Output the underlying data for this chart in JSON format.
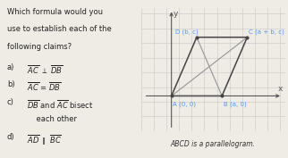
{
  "text_lines": [
    "Which formula would you",
    "use to establish each of the",
    "following claims?"
  ],
  "items": [
    [
      "a)",
      "$\\overline{AC}$ $\\perp$ $\\overline{DB}$"
    ],
    [
      "b)",
      "$\\overline{AC}$ = $\\overline{DB}$"
    ],
    [
      "c)",
      "$\\overline{DB}$ and $\\overline{AC}$ bisect"
    ],
    [
      "",
      "    each other"
    ],
    [
      "d)",
      "$\\overline{AD}$ $\\parallel$ $\\overline{BC}$"
    ]
  ],
  "caption": "ABCD is a parallelogram.",
  "points": {
    "A": [
      0,
      0
    ],
    "B": [
      2,
      0
    ],
    "C": [
      3,
      2
    ],
    "D": [
      1,
      2
    ]
  },
  "point_labels": {
    "A": "A (0, 0)",
    "B": "B (a, 0)",
    "C": "C (a + b, c)",
    "D": "D (b, c)"
  },
  "xlim": [
    -1.2,
    4.5
  ],
  "ylim": [
    -1.2,
    3.0
  ],
  "grid_color": "#c8c8c8",
  "grid_step": 0.5,
  "parallelogram_color": "#444444",
  "diagonal_color": "#999999",
  "label_color": "#5599ee",
  "bg_color": "#eeece4",
  "ax_color": "#555555",
  "text_color": "#222222",
  "caption_color": "#333333",
  "text_fontsize": 6.0,
  "label_fontsize": 5.0,
  "axis_label_fontsize": 6.5,
  "caption_fontsize": 5.5
}
